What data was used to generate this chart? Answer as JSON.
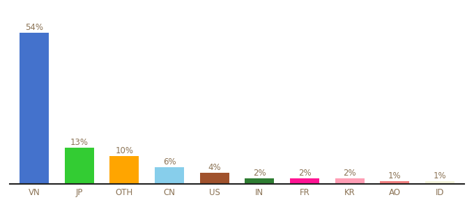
{
  "categories": [
    "VN",
    "JP",
    "OTH",
    "CN",
    "US",
    "IN",
    "FR",
    "KR",
    "AO",
    "ID"
  ],
  "values": [
    54,
    13,
    10,
    6,
    4,
    2,
    2,
    2,
    1,
    1
  ],
  "labels": [
    "54%",
    "13%",
    "10%",
    "6%",
    "4%",
    "2%",
    "2%",
    "2%",
    "1%",
    "1%"
  ],
  "bar_colors": [
    "#4472CC",
    "#33CC33",
    "#FFA500",
    "#87CEEB",
    "#A0522D",
    "#2E7D32",
    "#FF1493",
    "#FF9EB5",
    "#F08080",
    "#F5F5DC"
  ],
  "background_color": "#ffffff",
  "label_color": "#8B7355",
  "label_fontsize": 8.5,
  "tick_fontsize": 8.5,
  "tick_color": "#8B7355",
  "bar_width": 0.65,
  "ylim": [
    0,
    62
  ],
  "bottom_line_color": "#222222"
}
